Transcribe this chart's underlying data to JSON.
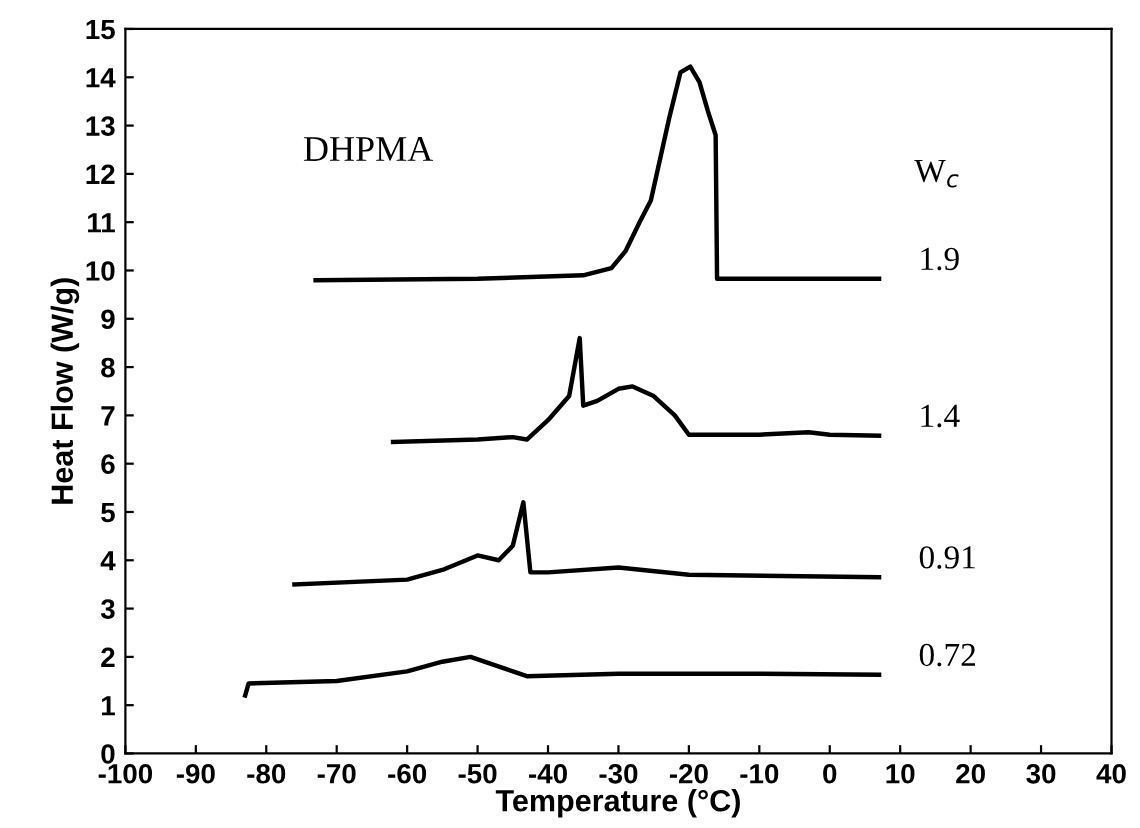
{
  "chart_data": {
    "type": "line",
    "xlabel": "Temperature (°C)",
    "ylabel": "Heat Flow (W/g)",
    "legend_title": "W$_{c}$",
    "annotations": [
      "DHPMA"
    ],
    "xlim": [
      -100,
      40
    ],
    "xticks": [
      -100,
      -90,
      -80,
      -70,
      -60,
      -50,
      -40,
      -30,
      -20,
      -10,
      0,
      10,
      20,
      30,
      40
    ],
    "ylim": [
      0,
      15
    ],
    "yticks": [
      0,
      1,
      2,
      3,
      4,
      5,
      6,
      7,
      8,
      9,
      10,
      11,
      12,
      13,
      14,
      15
    ],
    "grid": false,
    "marker": "none",
    "line_style": "solid",
    "series": [
      {
        "name": "1.9",
        "color": "#000000",
        "x": [
          -73,
          -50,
          -35,
          -31,
          -29,
          -27,
          -25.4,
          -22.8,
          -21.2,
          -19.8,
          -18.5,
          -17.3,
          -16.2,
          -16,
          -10,
          7
        ],
        "values": [
          9.8,
          9.83,
          9.9,
          10.05,
          10.4,
          11.0,
          11.45,
          13.15,
          14.1,
          14.22,
          13.9,
          13.3,
          12.8,
          9.83,
          9.83,
          9.83
        ]
      },
      {
        "name": "1.4",
        "color": "#000000",
        "x": [
          -62,
          -50,
          -45,
          -43,
          -40,
          -37,
          -35.5,
          -35,
          -33,
          -30,
          -28,
          -25,
          -22,
          -20,
          -10,
          -3,
          0,
          7
        ],
        "values": [
          6.45,
          6.5,
          6.55,
          6.5,
          6.9,
          7.4,
          8.6,
          7.2,
          7.3,
          7.55,
          7.6,
          7.4,
          7.0,
          6.6,
          6.6,
          6.65,
          6.6,
          6.58
        ]
      },
      {
        "name": "0.91",
        "color": "#000000",
        "x": [
          -76,
          -60,
          -55,
          -50,
          -47,
          -45,
          -43.5,
          -42.5,
          -40,
          -30,
          -20,
          7
        ],
        "values": [
          3.5,
          3.6,
          3.8,
          4.1,
          4.0,
          4.3,
          5.2,
          3.75,
          3.75,
          3.85,
          3.7,
          3.65
        ]
      },
      {
        "name": "0.72",
        "color": "#000000",
        "x": [
          -83,
          -82.5,
          -70,
          -60,
          -55,
          -51,
          -48,
          -45,
          -43,
          -30,
          -10,
          7
        ],
        "values": [
          1.2,
          1.45,
          1.5,
          1.7,
          1.9,
          2.0,
          1.85,
          1.7,
          1.6,
          1.65,
          1.65,
          1.63
        ]
      }
    ]
  }
}
